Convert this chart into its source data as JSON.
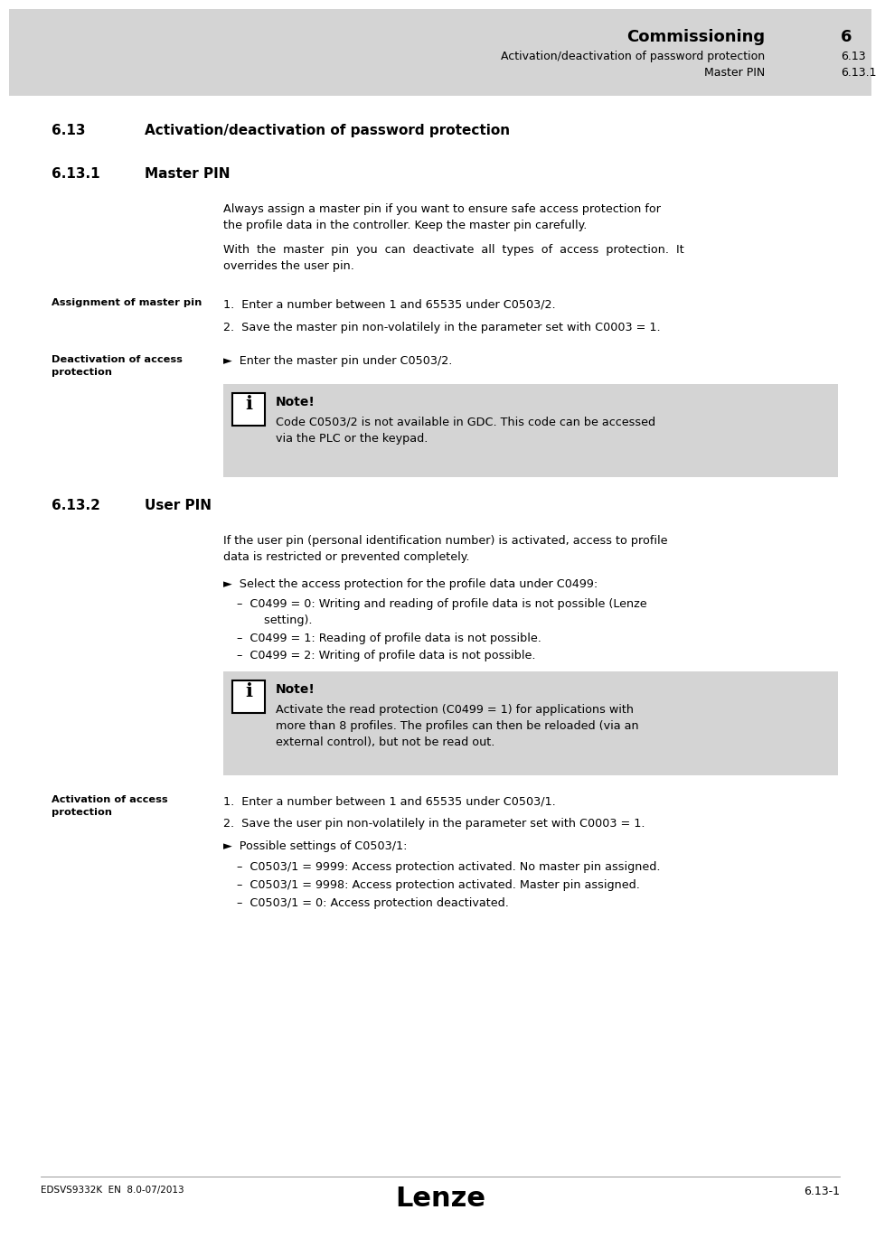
{
  "white_bg": "#ffffff",
  "note_bg": "#d4d4d4",
  "header_bg": "#d4d4d4",
  "header_title": "Commissioning",
  "header_section": "6",
  "header_sub1": "Activation/deactivation of password protection",
  "header_sub1_num": "6.13",
  "header_sub2": "Master PIN",
  "header_sub2_num": "6.13.1",
  "section_613_num": "6.13",
  "section_613_title": "Activation/deactivation of password protection",
  "section_6131_num": "6.13.1",
  "section_6131_title": "Master PIN",
  "para1_line1": "Always assign a master pin if you want to ensure safe access protection for",
  "para1_line2": "the profile data in the controller. Keep the master pin carefully.",
  "para2_line1": "With  the  master  pin  you  can  deactivate  all  types  of  access  protection.  It",
  "para2_line2": "overrides the user pin.",
  "label_assignment": "Assignment of master pin",
  "step1": "1.  Enter a number between 1 and 65535 under C0503/2.",
  "step2": "2.  Save the master pin non-volatilely in the parameter set with C0003 = 1.",
  "label_deactivation_1": "Deactivation of access",
  "label_deactivation_2": "protection",
  "deact_step": "►  Enter the master pin under C0503/2.",
  "note1_title": "Note!",
  "note1_line1": "Code C0503/2 is not available in GDC. This code can be accessed",
  "note1_line2": "via the PLC or the keypad.",
  "section_6132_num": "6.13.2",
  "section_6132_title": "User PIN",
  "user_para_line1": "If the user pin (personal identification number) is activated, access to profile",
  "user_para_line2": "data is restricted or prevented completely.",
  "user_bullet": "►  Select the access protection for the profile data under C0499:",
  "user_sub1_line1": "–  C0499 = 0: Writing and reading of profile data is not possible (Lenze",
  "user_sub1_line2": "   setting).",
  "user_sub2": "–  C0499 = 1: Reading of profile data is not possible.",
  "user_sub3": "–  C0499 = 2: Writing of profile data is not possible.",
  "note2_title": "Note!",
  "note2_line1": "Activate the read protection (C0499 = 1) for applications with",
  "note2_line2": "more than 8 profiles. The profiles can then be reloaded (via an",
  "note2_line3": "external control), but not be read out.",
  "label_activation_1": "Activation of access",
  "label_activation_2": "protection",
  "act_step1": "1.  Enter a number between 1 and 65535 under C0503/1.",
  "act_step2": "2.  Save the user pin non-volatilely in the parameter set with C0003 = 1.",
  "act_bullet": "►  Possible settings of C0503/1:",
  "act_sub1": "–  C0503/1 = 9999: Access protection activated. No master pin assigned.",
  "act_sub2": "–  C0503/1 = 9998: Access protection activated. Master pin assigned.",
  "act_sub3": "–  C0503/1 = 0: Access protection deactivated.",
  "footer_left": "EDSVS9332K  EN  8.0-07/2013",
  "footer_center": "Lenze",
  "footer_right": "6.13-1"
}
